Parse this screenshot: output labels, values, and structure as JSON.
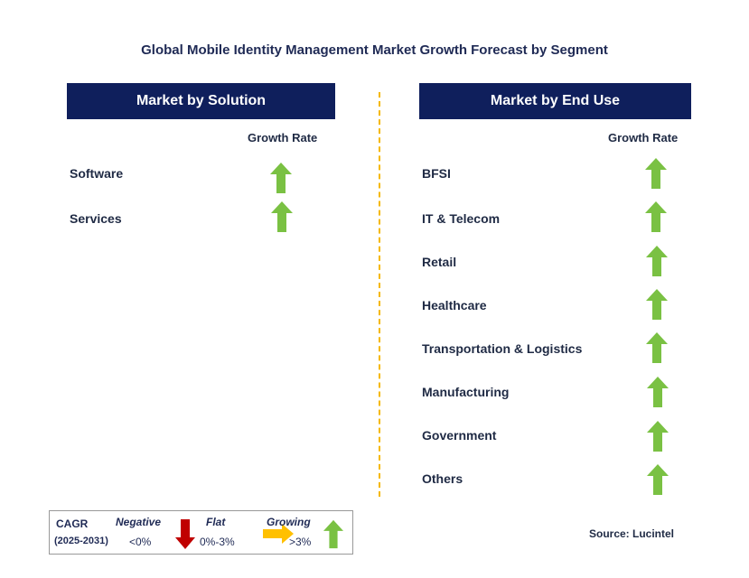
{
  "title": "Global Mobile Identity Management Market Growth Forecast by Segment",
  "left_panel": {
    "header": "Market by Solution",
    "column_label": "Growth Rate",
    "rows": [
      {
        "label": "Software",
        "trend": "growing"
      },
      {
        "label": "Services",
        "trend": "growing"
      }
    ]
  },
  "right_panel": {
    "header": "Market by End Use",
    "column_label": "Growth Rate",
    "rows": [
      {
        "label": "BFSI",
        "trend": "growing"
      },
      {
        "label": "IT & Telecom",
        "trend": "growing"
      },
      {
        "label": "Retail",
        "trend": "growing"
      },
      {
        "label": "Healthcare",
        "trend": "growing"
      },
      {
        "label": "Transportation & Logistics",
        "trend": "growing"
      },
      {
        "label": "Manufacturing",
        "trend": "growing"
      },
      {
        "label": "Government",
        "trend": "growing"
      },
      {
        "label": "Others",
        "trend": "growing"
      }
    ]
  },
  "legend": {
    "cagr_label": "CAGR",
    "period": "(2025-2031)",
    "negative": {
      "label": "Negative",
      "range": "<0%"
    },
    "flat": {
      "label": "Flat",
      "range": "0%-3%"
    },
    "growing": {
      "label": "Growing",
      "range": ">3%"
    }
  },
  "source": "Source: Lucintel",
  "colors": {
    "header_bg": "#0f1f5c",
    "growing": "#7ac143",
    "negative": "#c00000",
    "flat": "#ffc000",
    "divider": "#f5b800"
  }
}
